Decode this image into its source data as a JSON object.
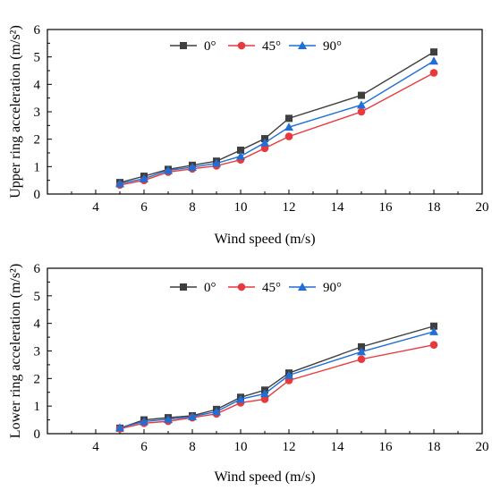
{
  "chart_data": [
    {
      "type": "line",
      "xlabel": "Wind speed (m/s)",
      "ylabel": "Upper ring acceleration (m/s²)",
      "xlim": [
        2,
        20
      ],
      "ylim": [
        0,
        6
      ],
      "xticks": [
        4,
        6,
        8,
        10,
        12,
        14,
        16,
        18,
        20
      ],
      "yticks": [
        0,
        1,
        2,
        3,
        4,
        5,
        6
      ],
      "grid": false,
      "legend_position": "top-center",
      "x": [
        5,
        6,
        7,
        8,
        9,
        10,
        11,
        12,
        15,
        18
      ],
      "series": [
        {
          "name": "0°",
          "color": "#3f3f3f",
          "marker": "square",
          "values": [
            0.42,
            0.65,
            0.9,
            1.05,
            1.2,
            1.6,
            2.02,
            2.76,
            3.6,
            5.18
          ]
        },
        {
          "name": "45°",
          "color": "#e8393c",
          "marker": "circle",
          "values": [
            0.33,
            0.5,
            0.8,
            0.92,
            1.03,
            1.25,
            1.67,
            2.1,
            3.0,
            4.42
          ]
        },
        {
          "name": "90°",
          "color": "#1f6fd6",
          "marker": "triangle",
          "values": [
            0.38,
            0.56,
            0.86,
            0.98,
            1.12,
            1.38,
            1.87,
            2.44,
            3.25,
            4.85
          ]
        }
      ]
    },
    {
      "type": "line",
      "xlabel": "Wind speed (m/s)",
      "ylabel": "Lower ring acceleration (m/s²)",
      "xlim": [
        2,
        20
      ],
      "ylim": [
        0,
        6
      ],
      "xticks": [
        4,
        6,
        8,
        10,
        12,
        14,
        16,
        18,
        20
      ],
      "yticks": [
        0,
        1,
        2,
        3,
        4,
        5,
        6
      ],
      "grid": false,
      "legend_position": "top-center",
      "x": [
        5,
        6,
        7,
        8,
        9,
        10,
        11,
        12,
        15,
        18
      ],
      "series": [
        {
          "name": "0°",
          "color": "#3f3f3f",
          "marker": "square",
          "values": [
            0.2,
            0.5,
            0.58,
            0.65,
            0.88,
            1.32,
            1.58,
            2.2,
            3.15,
            3.9
          ]
        },
        {
          "name": "45°",
          "color": "#e8393c",
          "marker": "circle",
          "values": [
            0.18,
            0.38,
            0.45,
            0.58,
            0.72,
            1.12,
            1.25,
            1.93,
            2.7,
            3.22
          ]
        },
        {
          "name": "90°",
          "color": "#1f6fd6",
          "marker": "triangle",
          "values": [
            0.22,
            0.44,
            0.52,
            0.62,
            0.8,
            1.25,
            1.45,
            2.12,
            2.97,
            3.7
          ]
        }
      ]
    }
  ]
}
